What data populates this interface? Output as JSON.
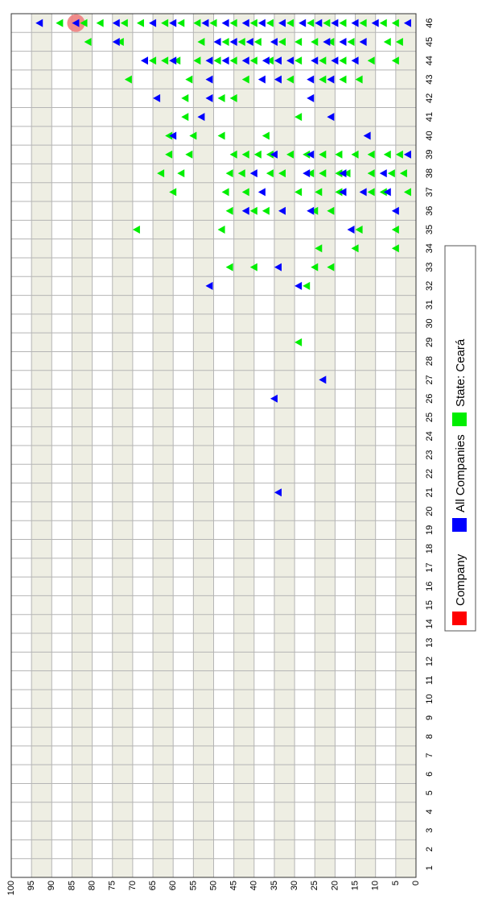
{
  "chart_data": {
    "type": "scatter",
    "orientation": "rotated-90-cw",
    "marker": "triangle",
    "x": [
      1,
      2,
      3,
      4,
      5,
      6,
      7,
      8,
      9,
      10,
      11,
      12,
      13,
      14,
      15,
      16,
      17,
      18,
      19,
      20,
      21,
      22,
      23,
      24,
      25,
      26,
      27,
      28,
      29,
      30,
      31,
      32,
      33,
      34,
      35,
      36,
      37,
      38,
      39,
      40,
      41,
      42,
      43,
      44,
      45,
      46
    ],
    "ylim": [
      0,
      100
    ],
    "y_ticks": [
      100,
      95,
      90,
      85,
      80,
      75,
      70,
      65,
      60,
      55,
      50,
      45,
      40,
      35,
      30,
      25,
      20,
      15,
      10,
      5,
      0
    ],
    "grid": true,
    "legend": {
      "placement": "right",
      "items": [
        {
          "label": "Company",
          "color": "#ff0000"
        },
        {
          "label": "All Companies",
          "color": "#0000ff"
        },
        {
          "label": "State: Ceará",
          "color": "#00ee00"
        }
      ]
    },
    "series": [
      {
        "name": "Company",
        "color": "#ff0000",
        "points": [
          [
            46,
            84
          ]
        ]
      },
      {
        "name": "All Companies",
        "color": "#0000ff",
        "points": [
          [
            46,
            93
          ],
          [
            46,
            84
          ],
          [
            46,
            74
          ],
          [
            46,
            65
          ],
          [
            46,
            60
          ],
          [
            46,
            52
          ],
          [
            46,
            47
          ],
          [
            46,
            42
          ],
          [
            46,
            38
          ],
          [
            46,
            33
          ],
          [
            46,
            28
          ],
          [
            46,
            24
          ],
          [
            46,
            20
          ],
          [
            46,
            15
          ],
          [
            46,
            10
          ],
          [
            46,
            2
          ],
          [
            45,
            74
          ],
          [
            45,
            49
          ],
          [
            45,
            45
          ],
          [
            45,
            41
          ],
          [
            45,
            35
          ],
          [
            45,
            22
          ],
          [
            45,
            18
          ],
          [
            45,
            13
          ],
          [
            44,
            67
          ],
          [
            44,
            60
          ],
          [
            44,
            51
          ],
          [
            44,
            47
          ],
          [
            44,
            42
          ],
          [
            44,
            37
          ],
          [
            44,
            34
          ],
          [
            44,
            31
          ],
          [
            44,
            25
          ],
          [
            44,
            20
          ],
          [
            44,
            15
          ],
          [
            43,
            51
          ],
          [
            43,
            38
          ],
          [
            43,
            34
          ],
          [
            43,
            26
          ],
          [
            43,
            21
          ],
          [
            42,
            64
          ],
          [
            42,
            51
          ],
          [
            42,
            26
          ],
          [
            41,
            53
          ],
          [
            41,
            21
          ],
          [
            40,
            60
          ],
          [
            40,
            12
          ],
          [
            39,
            35
          ],
          [
            39,
            26
          ],
          [
            39,
            2
          ],
          [
            38,
            40
          ],
          [
            38,
            27
          ],
          [
            38,
            18
          ],
          [
            38,
            8
          ],
          [
            37,
            38
          ],
          [
            37,
            18
          ],
          [
            37,
            13
          ],
          [
            37,
            7
          ],
          [
            36,
            42
          ],
          [
            36,
            33
          ],
          [
            36,
            26
          ],
          [
            36,
            5
          ],
          [
            35,
            16
          ],
          [
            33,
            34
          ],
          [
            32,
            51
          ],
          [
            32,
            29
          ],
          [
            27,
            23
          ],
          [
            26,
            35
          ],
          [
            21,
            34
          ]
        ]
      },
      {
        "name": "State: Ceará",
        "color": "#00ee00",
        "points": [
          [
            46,
            88
          ],
          [
            46,
            82
          ],
          [
            46,
            78
          ],
          [
            46,
            72
          ],
          [
            46,
            68
          ],
          [
            46,
            62
          ],
          [
            46,
            58
          ],
          [
            46,
            54
          ],
          [
            46,
            50
          ],
          [
            46,
            45
          ],
          [
            46,
            40
          ],
          [
            46,
            36
          ],
          [
            46,
            31
          ],
          [
            46,
            26
          ],
          [
            46,
            22
          ],
          [
            46,
            18
          ],
          [
            46,
            13
          ],
          [
            46,
            8
          ],
          [
            46,
            5
          ],
          [
            45,
            81
          ],
          [
            45,
            73
          ],
          [
            45,
            53
          ],
          [
            45,
            47
          ],
          [
            45,
            43
          ],
          [
            45,
            39
          ],
          [
            45,
            33
          ],
          [
            45,
            29
          ],
          [
            45,
            25
          ],
          [
            45,
            21
          ],
          [
            45,
            16
          ],
          [
            45,
            7
          ],
          [
            45,
            4
          ],
          [
            44,
            65
          ],
          [
            44,
            62
          ],
          [
            44,
            59
          ],
          [
            44,
            54
          ],
          [
            44,
            49
          ],
          [
            44,
            45
          ],
          [
            44,
            40
          ],
          [
            44,
            36
          ],
          [
            44,
            29
          ],
          [
            44,
            23
          ],
          [
            44,
            18
          ],
          [
            44,
            11
          ],
          [
            44,
            5
          ],
          [
            43,
            71
          ],
          [
            43,
            56
          ],
          [
            43,
            42
          ],
          [
            43,
            31
          ],
          [
            43,
            23
          ],
          [
            43,
            18
          ],
          [
            43,
            14
          ],
          [
            42,
            57
          ],
          [
            42,
            48
          ],
          [
            42,
            45
          ],
          [
            41,
            57
          ],
          [
            41,
            29
          ],
          [
            40,
            61
          ],
          [
            40,
            55
          ],
          [
            40,
            48
          ],
          [
            40,
            37
          ],
          [
            39,
            61
          ],
          [
            39,
            56
          ],
          [
            39,
            45
          ],
          [
            39,
            42
          ],
          [
            39,
            39
          ],
          [
            39,
            36
          ],
          [
            39,
            31
          ],
          [
            39,
            27
          ],
          [
            39,
            23
          ],
          [
            39,
            19
          ],
          [
            39,
            15
          ],
          [
            39,
            11
          ],
          [
            39,
            7
          ],
          [
            39,
            4
          ],
          [
            38,
            63
          ],
          [
            38,
            58
          ],
          [
            38,
            46
          ],
          [
            38,
            43
          ],
          [
            38,
            36
          ],
          [
            38,
            33
          ],
          [
            38,
            26
          ],
          [
            38,
            23
          ],
          [
            38,
            19
          ],
          [
            38,
            17
          ],
          [
            38,
            11
          ],
          [
            38,
            6
          ],
          [
            38,
            3
          ],
          [
            37,
            60
          ],
          [
            37,
            47
          ],
          [
            37,
            42
          ],
          [
            37,
            29
          ],
          [
            37,
            24
          ],
          [
            37,
            19
          ],
          [
            37,
            11
          ],
          [
            37,
            8
          ],
          [
            37,
            2
          ],
          [
            36,
            46
          ],
          [
            36,
            40
          ],
          [
            36,
            37
          ],
          [
            36,
            25
          ],
          [
            36,
            21
          ],
          [
            35,
            69
          ],
          [
            35,
            48
          ],
          [
            35,
            14
          ],
          [
            35,
            5
          ],
          [
            34,
            24
          ],
          [
            34,
            15
          ],
          [
            34,
            5
          ],
          [
            33,
            46
          ],
          [
            33,
            40
          ],
          [
            33,
            25
          ],
          [
            33,
            21
          ],
          [
            32,
            27
          ],
          [
            29,
            29
          ]
        ]
      }
    ]
  }
}
